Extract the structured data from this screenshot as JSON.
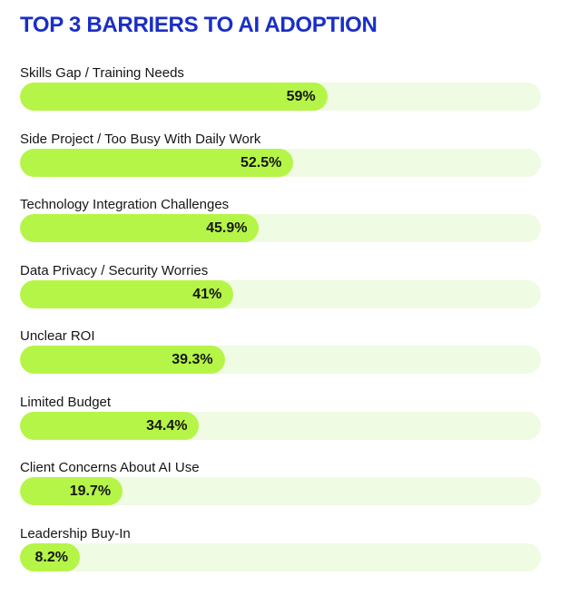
{
  "title": "TOP 3 BARRIERS TO AI ADOPTION",
  "colors": {
    "title": "#1a2ec7",
    "bar_fill": "#b5f547",
    "bar_track": "#effbe2",
    "text": "#161616"
  },
  "chart_data": {
    "type": "bar",
    "orientation": "horizontal",
    "title": "TOP 3 BARRIERS TO AI ADOPTION",
    "xlabel": "",
    "ylabel": "",
    "xlim": [
      0,
      100
    ],
    "grid": false,
    "categories": [
      "Skills Gap / Training Needs",
      "Side Project / Too Busy With Daily Work",
      "Technology Integration Challenges",
      "Data Privacy / Security Worries",
      "Unclear ROI",
      "Limited Budget",
      "Client Concerns About AI Use",
      "Leadership Buy-In"
    ],
    "values": [
      59,
      52.5,
      45.9,
      41,
      39.3,
      34.4,
      19.7,
      8.2
    ],
    "value_labels": [
      "59%",
      "52.5%",
      "45.9%",
      "41%",
      "39.3%",
      "34.4%",
      "19.7%",
      "8.2%"
    ]
  }
}
